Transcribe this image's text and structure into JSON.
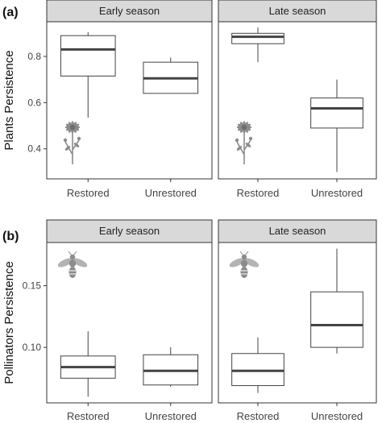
{
  "chart_data": [
    {
      "type": "box",
      "panel_label": "(a)",
      "ylabel": "Plants Persistence",
      "ylim": [
        0.27,
        0.95
      ],
      "yticks": [
        0.4,
        0.6,
        0.8
      ],
      "ytick_labels": [
        "0.4",
        "0.6",
        "0.8"
      ],
      "categories": [
        "Restored",
        "Unrestored"
      ],
      "facets": [
        {
          "title": "Early season",
          "icon": "flower-icon",
          "boxes": [
            {
              "category": "Restored",
              "min": 0.535,
              "q1": 0.715,
              "median": 0.83,
              "q3": 0.89,
              "max": 0.905
            },
            {
              "category": "Unrestored",
              "min": 0.64,
              "q1": 0.64,
              "median": 0.705,
              "q3": 0.775,
              "max": 0.795
            }
          ]
        },
        {
          "title": "Late season",
          "icon": "flower-icon",
          "boxes": [
            {
              "category": "Restored",
              "min": 0.775,
              "q1": 0.855,
              "median": 0.885,
              "q3": 0.9,
              "max": 0.925
            },
            {
              "category": "Unrestored",
              "min": 0.3,
              "q1": 0.49,
              "median": 0.575,
              "q3": 0.62,
              "max": 0.7
            }
          ]
        }
      ]
    },
    {
      "type": "box",
      "panel_label": "(b)",
      "ylabel": "Pollinators Persistence",
      "ylim": [
        0.055,
        0.185
      ],
      "yticks": [
        0.1,
        0.15
      ],
      "ytick_labels": [
        "0.10",
        "0.15"
      ],
      "categories": [
        "Restored",
        "Unrestored"
      ],
      "facets": [
        {
          "title": "Early season",
          "icon": "bee-icon",
          "boxes": [
            {
              "category": "Restored",
              "min": 0.06,
              "q1": 0.075,
              "median": 0.084,
              "q3": 0.093,
              "max": 0.113
            },
            {
              "category": "Unrestored",
              "min": 0.068,
              "q1": 0.0695,
              "median": 0.081,
              "q3": 0.094,
              "max": 0.1
            }
          ]
        },
        {
          "title": "Late season",
          "icon": "bee-icon",
          "boxes": [
            {
              "category": "Restored",
              "min": 0.063,
              "q1": 0.069,
              "median": 0.081,
              "q3": 0.095,
              "max": 0.108
            },
            {
              "category": "Unrestored",
              "min": 0.095,
              "q1": 0.1,
              "median": 0.118,
              "q3": 0.145,
              "max": 0.18
            }
          ]
        }
      ]
    }
  ],
  "colors": {
    "strip_fill": "#d9d9d9",
    "frame": "#333333",
    "box_line": "#444444",
    "median": "#444444",
    "icon": "#8c8c8c"
  }
}
